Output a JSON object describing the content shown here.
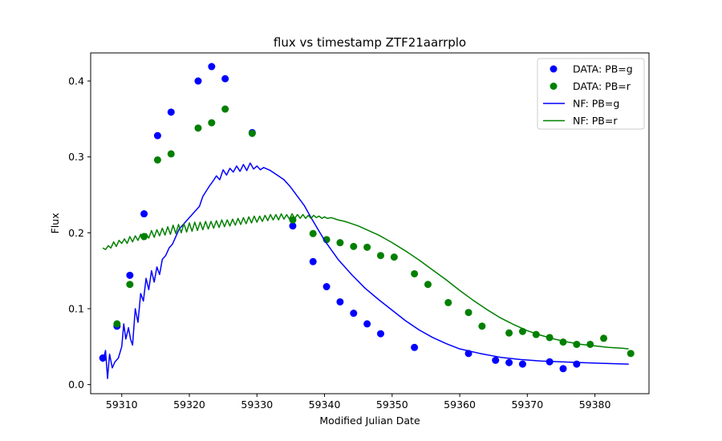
{
  "chart_data": {
    "type": "scatter",
    "title": "flux vs timestamp ZTF21aarrplo",
    "xlabel": "Modified Julian Date",
    "ylabel": "Flux",
    "xlim": [
      59305.4,
      59388.0
    ],
    "ylim": [
      -0.012,
      0.437
    ],
    "xticks": [
      59310,
      59320,
      59330,
      59340,
      59350,
      59360,
      59370,
      59380
    ],
    "yticks": [
      0.0,
      0.1,
      0.2,
      0.3,
      0.4
    ],
    "grid": false,
    "legend_position": "top-right",
    "colors": {
      "g": "#0000ff",
      "r": "#008000"
    },
    "series": [
      {
        "name": "DATA: PB=g",
        "kind": "scatter",
        "color": "#0000ff",
        "points": [
          [
            59307.2,
            0.035
          ],
          [
            59309.3,
            0.077
          ],
          [
            59311.2,
            0.144
          ],
          [
            59313.3,
            0.225
          ],
          [
            59315.3,
            0.328
          ],
          [
            59317.3,
            0.359
          ],
          [
            59321.3,
            0.4
          ],
          [
            59323.3,
            0.419
          ],
          [
            59325.3,
            0.403
          ],
          [
            59329.3,
            0.332
          ],
          [
            59335.3,
            0.209
          ],
          [
            59338.3,
            0.162
          ],
          [
            59340.3,
            0.129
          ],
          [
            59342.3,
            0.109
          ],
          [
            59344.3,
            0.094
          ],
          [
            59346.3,
            0.08
          ],
          [
            59348.3,
            0.067
          ],
          [
            59353.3,
            0.049
          ],
          [
            59361.3,
            0.041
          ],
          [
            59365.3,
            0.032
          ],
          [
            59367.3,
            0.029
          ],
          [
            59369.3,
            0.027
          ],
          [
            59373.3,
            0.03
          ],
          [
            59375.3,
            0.021
          ],
          [
            59377.3,
            0.027
          ]
        ]
      },
      {
        "name": "DATA: PB=r",
        "kind": "scatter",
        "color": "#008000",
        "points": [
          [
            59309.3,
            0.08
          ],
          [
            59311.2,
            0.132
          ],
          [
            59313.3,
            0.195
          ],
          [
            59315.3,
            0.296
          ],
          [
            59317.3,
            0.304
          ],
          [
            59321.3,
            0.338
          ],
          [
            59323.3,
            0.345
          ],
          [
            59325.3,
            0.363
          ],
          [
            59329.3,
            0.331
          ],
          [
            59335.3,
            0.217
          ],
          [
            59338.3,
            0.199
          ],
          [
            59340.3,
            0.191
          ],
          [
            59342.3,
            0.187
          ],
          [
            59344.3,
            0.182
          ],
          [
            59346.3,
            0.181
          ],
          [
            59348.3,
            0.17
          ],
          [
            59350.3,
            0.168
          ],
          [
            59353.3,
            0.146
          ],
          [
            59355.3,
            0.132
          ],
          [
            59358.3,
            0.108
          ],
          [
            59361.3,
            0.095
          ],
          [
            59363.3,
            0.077
          ],
          [
            59367.3,
            0.068
          ],
          [
            59369.3,
            0.07
          ],
          [
            59371.3,
            0.066
          ],
          [
            59373.3,
            0.062
          ],
          [
            59375.3,
            0.056
          ],
          [
            59377.3,
            0.053
          ],
          [
            59379.3,
            0.053
          ],
          [
            59381.3,
            0.061
          ],
          [
            59385.3,
            0.041
          ]
        ]
      },
      {
        "name": "NF: PB=g",
        "kind": "line",
        "color": "#0000ff",
        "points": [
          [
            59307.2,
            0.03
          ],
          [
            59307.6,
            0.045
          ],
          [
            59307.9,
            0.008
          ],
          [
            59308.2,
            0.04
          ],
          [
            59308.6,
            0.022
          ],
          [
            59309.0,
            0.03
          ],
          [
            59309.5,
            0.035
          ],
          [
            59310.0,
            0.05
          ],
          [
            59310.3,
            0.08
          ],
          [
            59310.6,
            0.06
          ],
          [
            59311.0,
            0.075
          ],
          [
            59311.3,
            0.06
          ],
          [
            59311.6,
            0.052
          ],
          [
            59312.0,
            0.1
          ],
          [
            59312.4,
            0.082
          ],
          [
            59312.8,
            0.12
          ],
          [
            59313.2,
            0.11
          ],
          [
            59313.6,
            0.14
          ],
          [
            59314.0,
            0.125
          ],
          [
            59314.4,
            0.15
          ],
          [
            59314.8,
            0.135
          ],
          [
            59315.2,
            0.155
          ],
          [
            59315.6,
            0.145
          ],
          [
            59316.0,
            0.165
          ],
          [
            59316.5,
            0.17
          ],
          [
            59317.0,
            0.18
          ],
          [
            59317.5,
            0.185
          ],
          [
            59318.0,
            0.195
          ],
          [
            59318.5,
            0.205
          ],
          [
            59319.0,
            0.21
          ],
          [
            59320.0,
            0.22
          ],
          [
            59321.0,
            0.23
          ],
          [
            59321.5,
            0.235
          ],
          [
            59322.0,
            0.248
          ],
          [
            59322.5,
            0.255
          ],
          [
            59323.0,
            0.262
          ],
          [
            59323.5,
            0.268
          ],
          [
            59324.0,
            0.275
          ],
          [
            59324.5,
            0.27
          ],
          [
            59325.0,
            0.283
          ],
          [
            59325.5,
            0.276
          ],
          [
            59326.0,
            0.285
          ],
          [
            59326.5,
            0.28
          ],
          [
            59327.0,
            0.288
          ],
          [
            59327.5,
            0.281
          ],
          [
            59328.0,
            0.29
          ],
          [
            59328.5,
            0.282
          ],
          [
            59329.0,
            0.292
          ],
          [
            59329.5,
            0.284
          ],
          [
            59330.0,
            0.288
          ],
          [
            59330.5,
            0.283
          ],
          [
            59331.0,
            0.286
          ],
          [
            59332.0,
            0.282
          ],
          [
            59333.0,
            0.276
          ],
          [
            59334.0,
            0.27
          ],
          [
            59335.0,
            0.26
          ],
          [
            59336.0,
            0.248
          ],
          [
            59337.0,
            0.236
          ],
          [
            59338.0,
            0.22
          ],
          [
            59339.0,
            0.205
          ],
          [
            59340.0,
            0.19
          ],
          [
            59342.0,
            0.165
          ],
          [
            59344.0,
            0.145
          ],
          [
            59346.0,
            0.127
          ],
          [
            59348.0,
            0.112
          ],
          [
            59350.0,
            0.098
          ],
          [
            59352.0,
            0.084
          ],
          [
            59354.0,
            0.072
          ],
          [
            59356.0,
            0.062
          ],
          [
            59358.0,
            0.054
          ],
          [
            59360.0,
            0.047
          ],
          [
            59363.0,
            0.041
          ],
          [
            59366.0,
            0.036
          ],
          [
            59369.0,
            0.033
          ],
          [
            59372.0,
            0.031
          ],
          [
            59375.0,
            0.03
          ],
          [
            59378.0,
            0.029
          ],
          [
            59381.0,
            0.028
          ],
          [
            59385.0,
            0.027
          ]
        ]
      },
      {
        "name": "NF: PB=r",
        "kind": "line",
        "color": "#008000",
        "points": [
          [
            59307.2,
            0.18
          ],
          [
            59307.6,
            0.178
          ],
          [
            59308.0,
            0.183
          ],
          [
            59308.4,
            0.18
          ],
          [
            59308.8,
            0.188
          ],
          [
            59309.2,
            0.182
          ],
          [
            59309.6,
            0.19
          ],
          [
            59310.0,
            0.186
          ],
          [
            59310.4,
            0.192
          ],
          [
            59310.8,
            0.186
          ],
          [
            59311.2,
            0.195
          ],
          [
            59311.6,
            0.188
          ],
          [
            59312.0,
            0.196
          ],
          [
            59312.4,
            0.19
          ],
          [
            59312.8,
            0.198
          ],
          [
            59313.2,
            0.191
          ],
          [
            59313.6,
            0.199
          ],
          [
            59314.0,
            0.193
          ],
          [
            59314.4,
            0.203
          ],
          [
            59314.8,
            0.194
          ],
          [
            59315.2,
            0.204
          ],
          [
            59315.6,
            0.196
          ],
          [
            59316.0,
            0.206
          ],
          [
            59316.4,
            0.197
          ],
          [
            59316.8,
            0.208
          ],
          [
            59317.2,
            0.198
          ],
          [
            59317.6,
            0.21
          ],
          [
            59318.0,
            0.199
          ],
          [
            59318.4,
            0.211
          ],
          [
            59318.8,
            0.2
          ],
          [
            59319.2,
            0.212
          ],
          [
            59319.6,
            0.201
          ],
          [
            59320.0,
            0.213
          ],
          [
            59320.4,
            0.202
          ],
          [
            59320.8,
            0.214
          ],
          [
            59321.2,
            0.203
          ],
          [
            59321.6,
            0.214
          ],
          [
            59322.0,
            0.204
          ],
          [
            59322.4,
            0.215
          ],
          [
            59322.8,
            0.205
          ],
          [
            59323.2,
            0.215
          ],
          [
            59323.6,
            0.206
          ],
          [
            59324.0,
            0.216
          ],
          [
            59324.4,
            0.207
          ],
          [
            59324.8,
            0.217
          ],
          [
            59325.2,
            0.208
          ],
          [
            59325.6,
            0.217
          ],
          [
            59326.0,
            0.209
          ],
          [
            59326.4,
            0.218
          ],
          [
            59326.8,
            0.21
          ],
          [
            59327.2,
            0.219
          ],
          [
            59327.6,
            0.211
          ],
          [
            59328.0,
            0.22
          ],
          [
            59328.4,
            0.212
          ],
          [
            59328.8,
            0.221
          ],
          [
            59329.2,
            0.213
          ],
          [
            59329.6,
            0.222
          ],
          [
            59330.0,
            0.214
          ],
          [
            59330.4,
            0.222
          ],
          [
            59330.8,
            0.215
          ],
          [
            59331.2,
            0.223
          ],
          [
            59331.6,
            0.216
          ],
          [
            59332.0,
            0.224
          ],
          [
            59332.4,
            0.217
          ],
          [
            59332.8,
            0.224
          ],
          [
            59333.2,
            0.217
          ],
          [
            59333.6,
            0.225
          ],
          [
            59334.0,
            0.218
          ],
          [
            59334.4,
            0.224
          ],
          [
            59334.8,
            0.218
          ],
          [
            59335.2,
            0.225
          ],
          [
            59335.6,
            0.219
          ],
          [
            59336.0,
            0.224
          ],
          [
            59336.4,
            0.219
          ],
          [
            59336.8,
            0.224
          ],
          [
            59337.2,
            0.219
          ],
          [
            59337.6,
            0.223
          ],
          [
            59338.0,
            0.219
          ],
          [
            59338.4,
            0.223
          ],
          [
            59338.8,
            0.22
          ],
          [
            59339.2,
            0.222
          ],
          [
            59339.6,
            0.219
          ],
          [
            59340.0,
            0.221
          ],
          [
            59340.4,
            0.219
          ],
          [
            59341.0,
            0.22
          ],
          [
            59342.0,
            0.217
          ],
          [
            59343.0,
            0.215
          ],
          [
            59344.0,
            0.212
          ],
          [
            59345.0,
            0.209
          ],
          [
            59346.0,
            0.205
          ],
          [
            59347.0,
            0.201
          ],
          [
            59348.0,
            0.197
          ],
          [
            59349.0,
            0.192
          ],
          [
            59350.0,
            0.187
          ],
          [
            59352.0,
            0.176
          ],
          [
            59354.0,
            0.164
          ],
          [
            59356.0,
            0.151
          ],
          [
            59358.0,
            0.138
          ],
          [
            59360.0,
            0.124
          ],
          [
            59362.0,
            0.111
          ],
          [
            59364.0,
            0.099
          ],
          [
            59366.0,
            0.088
          ],
          [
            59368.0,
            0.079
          ],
          [
            59370.0,
            0.071
          ],
          [
            59372.0,
            0.065
          ],
          [
            59374.0,
            0.06
          ],
          [
            59376.0,
            0.056
          ],
          [
            59378.0,
            0.053
          ],
          [
            59380.0,
            0.051
          ],
          [
            59382.0,
            0.049
          ],
          [
            59384.0,
            0.048
          ],
          [
            59385.0,
            0.047
          ]
        ]
      }
    ]
  }
}
